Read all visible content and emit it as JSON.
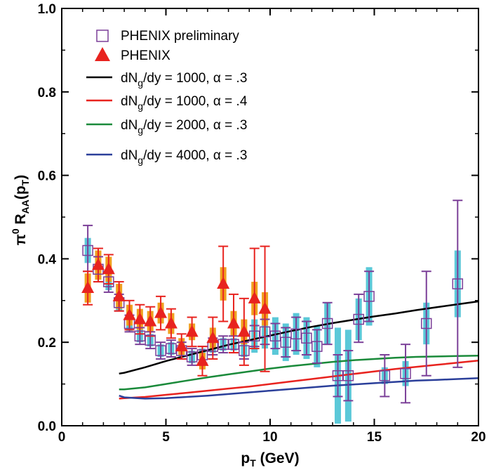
{
  "chart_data": {
    "type": "scatter",
    "title": "",
    "xlabel": "p",
    "xlabel_sub": "T",
    "xlabel_suffix": " (GeV)",
    "ylabel": "π",
    "ylabel_sup": "0",
    "ylabel_main": " R",
    "ylabel_sub": "AA",
    "ylabel_mid": "(p",
    "ylabel_sub2": "T",
    "ylabel_end": ")",
    "xlim": [
      0,
      20
    ],
    "ylim": [
      0,
      1
    ],
    "x_ticks": [
      "0",
      "5",
      "10",
      "15",
      "20"
    ],
    "y_ticks": [
      "0.0",
      "0.2",
      "0.4",
      "0.6",
      "0.8",
      "1.0"
    ],
    "grid": false,
    "legend_position": "top-left",
    "colors": {
      "preliminary": "#7b3f98",
      "phenix": "#e8231f",
      "sys_band_prelim": "#5bc8d8",
      "sys_band_phenix": "#f0a020",
      "line_black": "#000000",
      "line_red": "#e8231f",
      "line_green": "#1a8a3a",
      "line_blue": "#2b3f9a"
    },
    "legend": [
      {
        "marker": "open-square",
        "pre": "PHENIX preliminary",
        "sub": "",
        "post": ""
      },
      {
        "marker": "filled-triangle",
        "pre": "PHENIX",
        "sub": "",
        "post": ""
      },
      {
        "marker": "line",
        "color": "#000000",
        "pre": "dN",
        "sub": "g",
        "post": "/dy = 1000, α = .3"
      },
      {
        "marker": "line",
        "color": "#e8231f",
        "pre": "dN",
        "sub": "g",
        "post": "/dy = 1000, α = .4"
      },
      {
        "marker": "line",
        "color": "#1a8a3a",
        "pre": "dN",
        "sub": "g",
        "post": "/dy = 2000, α = .3"
      },
      {
        "marker": "line",
        "color": "#2b3f9a",
        "pre": "dN",
        "sub": "g",
        "post": "/dy = 4000, α = .3"
      }
    ],
    "series": [
      {
        "name": "PHENIX preliminary",
        "marker": "open-square",
        "points": [
          {
            "x": 1.25,
            "y": 0.42,
            "err_lo": 0.05,
            "err_hi": 0.06,
            "sys": 0.03
          },
          {
            "x": 1.75,
            "y": 0.375,
            "err_lo": 0.03,
            "err_hi": 0.03,
            "sys": 0.025
          },
          {
            "x": 2.25,
            "y": 0.345,
            "err_lo": 0.025,
            "err_hi": 0.025,
            "sys": 0.02
          },
          {
            "x": 2.75,
            "y": 0.295,
            "err_lo": 0.02,
            "err_hi": 0.02,
            "sys": 0.02
          },
          {
            "x": 3.25,
            "y": 0.245,
            "err_lo": 0.02,
            "err_hi": 0.02,
            "sys": 0.018
          },
          {
            "x": 3.75,
            "y": 0.215,
            "err_lo": 0.02,
            "err_hi": 0.02,
            "sys": 0.015
          },
          {
            "x": 4.25,
            "y": 0.205,
            "err_lo": 0.02,
            "err_hi": 0.02,
            "sys": 0.015
          },
          {
            "x": 4.75,
            "y": 0.18,
            "err_lo": 0.02,
            "err_hi": 0.02,
            "sys": 0.015
          },
          {
            "x": 5.25,
            "y": 0.185,
            "err_lo": 0.02,
            "err_hi": 0.02,
            "sys": 0.015
          },
          {
            "x": 5.75,
            "y": 0.18,
            "err_lo": 0.02,
            "err_hi": 0.02,
            "sys": 0.015
          },
          {
            "x": 6.25,
            "y": 0.165,
            "err_lo": 0.02,
            "err_hi": 0.02,
            "sys": 0.015
          },
          {
            "x": 6.75,
            "y": 0.17,
            "err_lo": 0.02,
            "err_hi": 0.02,
            "sys": 0.015
          },
          {
            "x": 7.25,
            "y": 0.19,
            "err_lo": 0.02,
            "err_hi": 0.02,
            "sys": 0.015
          },
          {
            "x": 7.75,
            "y": 0.195,
            "err_lo": 0.02,
            "err_hi": 0.02,
            "sys": 0.015
          },
          {
            "x": 8.25,
            "y": 0.195,
            "err_lo": 0.02,
            "err_hi": 0.02,
            "sys": 0.015
          },
          {
            "x": 8.75,
            "y": 0.18,
            "err_lo": 0.02,
            "err_hi": 0.02,
            "sys": 0.015
          },
          {
            "x": 9.25,
            "y": 0.215,
            "err_lo": 0.025,
            "err_hi": 0.025,
            "sys": 0.04
          },
          {
            "x": 9.75,
            "y": 0.225,
            "err_lo": 0.03,
            "err_hi": 0.03,
            "sys": 0.04
          },
          {
            "x": 10.25,
            "y": 0.215,
            "err_lo": 0.03,
            "err_hi": 0.03,
            "sys": 0.045
          },
          {
            "x": 10.75,
            "y": 0.2,
            "err_lo": 0.035,
            "err_hi": 0.035,
            "sys": 0.045
          },
          {
            "x": 11.25,
            "y": 0.22,
            "err_lo": 0.04,
            "err_hi": 0.04,
            "sys": 0.05
          },
          {
            "x": 11.75,
            "y": 0.21,
            "err_lo": 0.04,
            "err_hi": 0.04,
            "sys": 0.05
          },
          {
            "x": 12.25,
            "y": 0.19,
            "err_lo": 0.04,
            "err_hi": 0.04,
            "sys": 0.05
          },
          {
            "x": 12.75,
            "y": 0.245,
            "err_lo": 0.05,
            "err_hi": 0.05,
            "sys": 0.05
          },
          {
            "x": 13.25,
            "y": 0.12,
            "err_lo": 0.05,
            "err_hi": 0.05,
            "sys": 0.115
          },
          {
            "x": 13.75,
            "y": 0.12,
            "err_lo": 0.06,
            "err_hi": 0.06,
            "sys": 0.11
          },
          {
            "x": 14.25,
            "y": 0.255,
            "err_lo": 0.055,
            "err_hi": 0.06,
            "sys": 0.05
          },
          {
            "x": 14.75,
            "y": 0.31,
            "err_lo": 0.06,
            "err_hi": 0.06,
            "sys": 0.07
          },
          {
            "x": 15.5,
            "y": 0.12,
            "err_lo": 0.05,
            "err_hi": 0.05,
            "sys": 0.02
          },
          {
            "x": 16.5,
            "y": 0.125,
            "err_lo": 0.07,
            "err_hi": 0.07,
            "sys": 0.03
          },
          {
            "x": 17.5,
            "y": 0.245,
            "err_lo": 0.125,
            "err_hi": 0.125,
            "sys": 0.05
          },
          {
            "x": 19.0,
            "y": 0.34,
            "err_lo": 0.2,
            "err_hi": 0.2,
            "sys": 0.08
          }
        ]
      },
      {
        "name": "PHENIX",
        "marker": "filled-triangle",
        "points": [
          {
            "x": 1.25,
            "y": 0.33,
            "err_lo": 0.04,
            "err_hi": 0.04,
            "sys": 0.035
          },
          {
            "x": 1.75,
            "y": 0.385,
            "err_lo": 0.04,
            "err_hi": 0.04,
            "sys": 0.035
          },
          {
            "x": 2.25,
            "y": 0.375,
            "err_lo": 0.035,
            "err_hi": 0.035,
            "sys": 0.03
          },
          {
            "x": 2.75,
            "y": 0.31,
            "err_lo": 0.035,
            "err_hi": 0.035,
            "sys": 0.03
          },
          {
            "x": 3.25,
            "y": 0.265,
            "err_lo": 0.035,
            "err_hi": 0.035,
            "sys": 0.025
          },
          {
            "x": 3.75,
            "y": 0.255,
            "err_lo": 0.035,
            "err_hi": 0.035,
            "sys": 0.025
          },
          {
            "x": 4.25,
            "y": 0.25,
            "err_lo": 0.035,
            "err_hi": 0.035,
            "sys": 0.025
          },
          {
            "x": 4.75,
            "y": 0.27,
            "err_lo": 0.04,
            "err_hi": 0.04,
            "sys": 0.025
          },
          {
            "x": 5.25,
            "y": 0.245,
            "err_lo": 0.035,
            "err_hi": 0.035,
            "sys": 0.025
          },
          {
            "x": 5.75,
            "y": 0.19,
            "err_lo": 0.03,
            "err_hi": 0.03,
            "sys": 0.02
          },
          {
            "x": 6.25,
            "y": 0.225,
            "err_lo": 0.035,
            "err_hi": 0.035,
            "sys": 0.02
          },
          {
            "x": 6.75,
            "y": 0.155,
            "err_lo": 0.035,
            "err_hi": 0.035,
            "sys": 0.02
          },
          {
            "x": 7.25,
            "y": 0.21,
            "err_lo": 0.05,
            "err_hi": 0.05,
            "sys": 0.025
          },
          {
            "x": 7.75,
            "y": 0.34,
            "err_lo": 0.09,
            "err_hi": 0.09,
            "sys": 0.04
          },
          {
            "x": 8.25,
            "y": 0.245,
            "err_lo": 0.07,
            "err_hi": 0.07,
            "sys": 0.03
          },
          {
            "x": 8.75,
            "y": 0.225,
            "err_lo": 0.08,
            "err_hi": 0.08,
            "sys": 0.03
          },
          {
            "x": 9.25,
            "y": 0.305,
            "err_lo": 0.12,
            "err_hi": 0.12,
            "sys": 0.04
          },
          {
            "x": 9.75,
            "y": 0.28,
            "err_lo": 0.15,
            "err_hi": 0.15,
            "sys": 0.04
          }
        ]
      },
      {
        "name": "dNg/dy = 1000, α = .3",
        "marker": "line",
        "color": "#000000",
        "x": [
          2.75,
          3.0,
          4.0,
          5.0,
          6.0,
          7.0,
          8.0,
          9.0,
          10.0,
          11.0,
          12.0,
          13.0,
          14.0,
          15.0,
          16.0,
          17.0,
          18.0,
          19.0,
          20.0
        ],
        "y": [
          0.125,
          0.127,
          0.14,
          0.155,
          0.168,
          0.181,
          0.194,
          0.205,
          0.216,
          0.227,
          0.237,
          0.246,
          0.254,
          0.262,
          0.269,
          0.277,
          0.284,
          0.291,
          0.298
        ]
      },
      {
        "name": "dNg/dy = 1000, α = .4",
        "marker": "line",
        "color": "#e8231f",
        "x": [
          2.75,
          3.0,
          4.0,
          5.0,
          6.0,
          7.0,
          8.0,
          9.0,
          10.0,
          11.0,
          12.0,
          13.0,
          14.0,
          15.0,
          16.0,
          17.0,
          18.0,
          19.0,
          20.0
        ],
        "y": [
          0.065,
          0.066,
          0.069,
          0.074,
          0.079,
          0.084,
          0.089,
          0.094,
          0.1,
          0.106,
          0.112,
          0.118,
          0.124,
          0.13,
          0.136,
          0.141,
          0.146,
          0.151,
          0.156
        ]
      },
      {
        "name": "dNg/dy = 2000, α = .3",
        "marker": "line",
        "color": "#1a8a3a",
        "x": [
          2.75,
          3.0,
          4.0,
          5.0,
          6.0,
          7.0,
          8.0,
          9.0,
          10.0,
          11.0,
          12.0,
          13.0,
          14.0,
          15.0,
          16.0,
          17.0,
          18.0,
          19.0,
          20.0
        ],
        "y": [
          0.087,
          0.087,
          0.092,
          0.1,
          0.108,
          0.116,
          0.123,
          0.13,
          0.137,
          0.143,
          0.148,
          0.153,
          0.157,
          0.16,
          0.163,
          0.165,
          0.166,
          0.167,
          0.168
        ]
      },
      {
        "name": "dNg/dy = 4000, α = .3",
        "marker": "line",
        "color": "#2b3f9a",
        "x": [
          2.75,
          3.0,
          4.0,
          5.0,
          6.0,
          7.0,
          8.0,
          9.0,
          10.0,
          11.0,
          12.0,
          13.0,
          14.0,
          15.0,
          16.0,
          17.0,
          18.0,
          19.0,
          20.0
        ],
        "y": [
          0.072,
          0.068,
          0.065,
          0.066,
          0.069,
          0.072,
          0.076,
          0.08,
          0.084,
          0.088,
          0.092,
          0.096,
          0.099,
          0.102,
          0.105,
          0.108,
          0.11,
          0.112,
          0.114
        ]
      }
    ]
  }
}
